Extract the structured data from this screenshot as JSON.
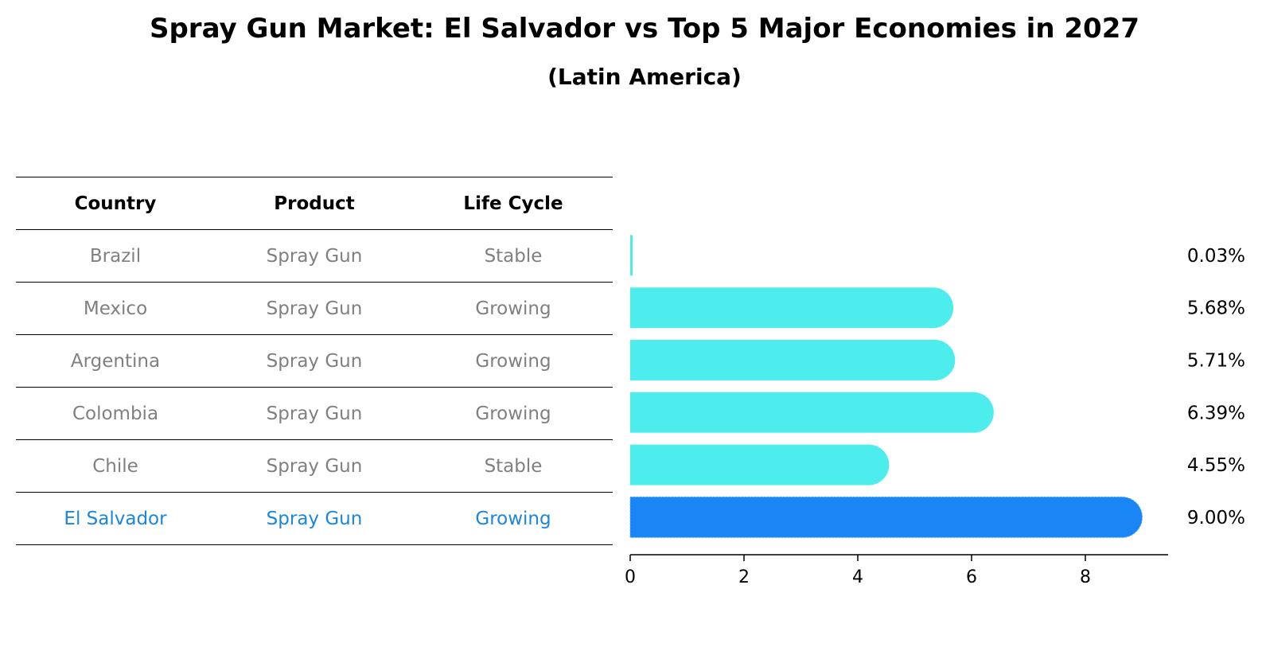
{
  "chart_data": {
    "type": "bar",
    "orientation": "horizontal",
    "title": "Spray Gun Market: El Salvador vs Top 5 Major Economies in 2027",
    "subtitle": "(Latin America)",
    "table_headers": [
      "Country",
      "Product",
      "Life Cycle"
    ],
    "rows": [
      {
        "country": "Brazil",
        "product": "Spray Gun",
        "life_cycle": "Stable",
        "value": 0.03,
        "label": "0.03%",
        "highlight": false
      },
      {
        "country": "Mexico",
        "product": "Spray Gun",
        "life_cycle": "Growing",
        "value": 5.68,
        "label": "5.68%",
        "highlight": false
      },
      {
        "country": "Argentina",
        "product": "Spray Gun",
        "life_cycle": "Growing",
        "value": 5.71,
        "label": "5.71%",
        "highlight": false
      },
      {
        "country": "Colombia",
        "product": "Spray Gun",
        "life_cycle": "Growing",
        "value": 6.39,
        "label": "6.39%",
        "highlight": false
      },
      {
        "country": "Chile",
        "product": "Spray Gun",
        "life_cycle": "Stable",
        "value": 4.55,
        "label": "4.55%",
        "highlight": false
      },
      {
        "country": "El Salvador",
        "product": "Spray Gun",
        "life_cycle": "Growing",
        "value": 9.0,
        "label": "9.00%",
        "highlight": true
      }
    ],
    "x_ticks": [
      "0",
      "2",
      "4",
      "6",
      "8"
    ],
    "xlim": [
      0,
      9.5
    ],
    "colors": {
      "bar": "#4deded",
      "highlight_bar": "#1a86f5",
      "highlight_text": "#1a86e0",
      "muted_text": "#808080"
    }
  }
}
